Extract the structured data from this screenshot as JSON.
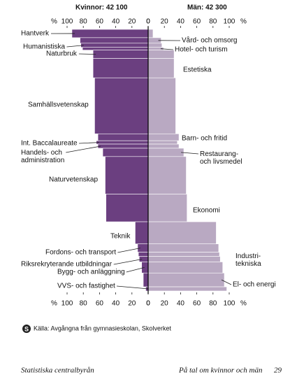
{
  "chart_data": {
    "type": "mosaic-bar",
    "left_header": "Kvinnor: 42 100",
    "right_header": "Män: 42 300",
    "axis_unit": "%",
    "xlim": [
      0,
      100
    ],
    "xticks": [
      100,
      80,
      60,
      40,
      20,
      0
    ],
    "categories": [
      "Hantverk",
      "Vård- och omsorg",
      "Humanistiska",
      "Hotel- och turism",
      "Naturbruk",
      "Estetiska",
      "Samhällsvetenskap",
      "Barn- och fritid",
      "Int. Baccalaureate",
      "Handels- och\nadministration",
      "Restaurang-\noch livsmedel",
      "Naturvetenskap",
      "Ekonomi",
      "Teknik",
      "Fordons- och transport",
      "Industri-\ntekniska",
      "Riksrekryterande utbildningar",
      "Bygg- och anläggning",
      "El- och energi",
      "VVS- och fastighet"
    ],
    "women": [
      94,
      84,
      83,
      81,
      68,
      68,
      66,
      62,
      64,
      62,
      56,
      53,
      52,
      16,
      13,
      12,
      11,
      8,
      6,
      3
    ],
    "men": [
      6,
      16,
      17,
      19,
      32,
      32,
      34,
      38,
      36,
      38,
      44,
      47,
      48,
      84,
      87,
      88,
      89,
      92,
      94,
      97
    ],
    "students": [
      2700,
      1800,
      1350,
      900,
      2700,
      6300,
      18200,
      2250,
      1100,
      1350,
      2700,
      12200,
      9000,
      7200,
      2700,
      1350,
      1800,
      3600,
      4500,
      1350
    ],
    "women_color": "#6b3f80",
    "men_color": "#b9a9c2",
    "source": "Källa: Avgångna från gymnasieskolan, Skolverket"
  },
  "footer": {
    "publisher": "Statistiska centralbyrån",
    "publication": "På tal om kvinnor och män",
    "page": "29"
  }
}
